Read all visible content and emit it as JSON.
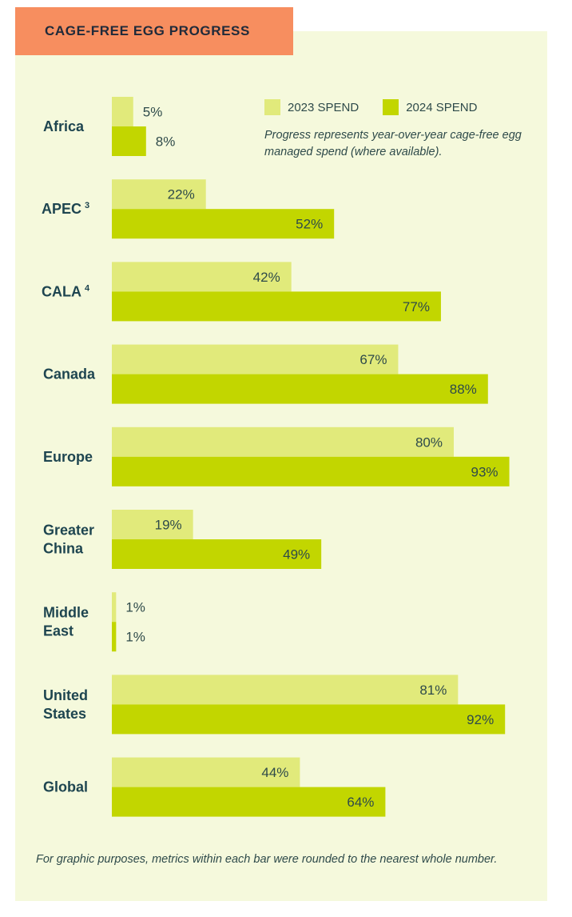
{
  "title": "CAGE-FREE EGG PROGRESS",
  "legend": {
    "series_2023": "2023 SPEND",
    "series_2024": "2024 SPEND",
    "note": "Progress represents year-over-year cage-free egg managed spend (where available)."
  },
  "footnote": "For graphic purposes, metrics within each bar were rounded to the nearest whole number.",
  "colors": {
    "series_2023": "#e1ea7b",
    "series_2024": "#c2d600",
    "title_bg": "#f78e5f",
    "panel_bg": "#f5f9dc",
    "label": "#1e4550"
  },
  "chart_data": {
    "type": "bar",
    "orientation": "horizontal",
    "categories": [
      {
        "lines": [
          "Africa"
        ],
        "sup": ""
      },
      {
        "lines": [
          "APEC"
        ],
        "sup": "3"
      },
      {
        "lines": [
          "CALA"
        ],
        "sup": "4"
      },
      {
        "lines": [
          "Canada"
        ],
        "sup": ""
      },
      {
        "lines": [
          "Europe"
        ],
        "sup": ""
      },
      {
        "lines": [
          "Greater",
          "China"
        ],
        "sup": ""
      },
      {
        "lines": [
          "Middle",
          "East"
        ],
        "sup": ""
      },
      {
        "lines": [
          "United",
          "States"
        ],
        "sup": ""
      },
      {
        "lines": [
          "Global"
        ],
        "sup": ""
      }
    ],
    "series": [
      {
        "name": "2023 SPEND",
        "values": [
          5,
          22,
          42,
          67,
          80,
          19,
          1,
          81,
          44
        ]
      },
      {
        "name": "2024 SPEND",
        "values": [
          8,
          52,
          77,
          88,
          93,
          49,
          1,
          92,
          64
        ]
      }
    ],
    "labels": [
      [
        "5%",
        "22%",
        "42%",
        "67%",
        "80%",
        "19%",
        "1%",
        "81%",
        "44%"
      ],
      [
        "8%",
        "52%",
        "77%",
        "88%",
        "93%",
        "49%",
        "1%",
        "92%",
        "64%"
      ]
    ],
    "xlim": [
      0,
      100
    ],
    "grid": false,
    "legend_position": "top-right"
  }
}
